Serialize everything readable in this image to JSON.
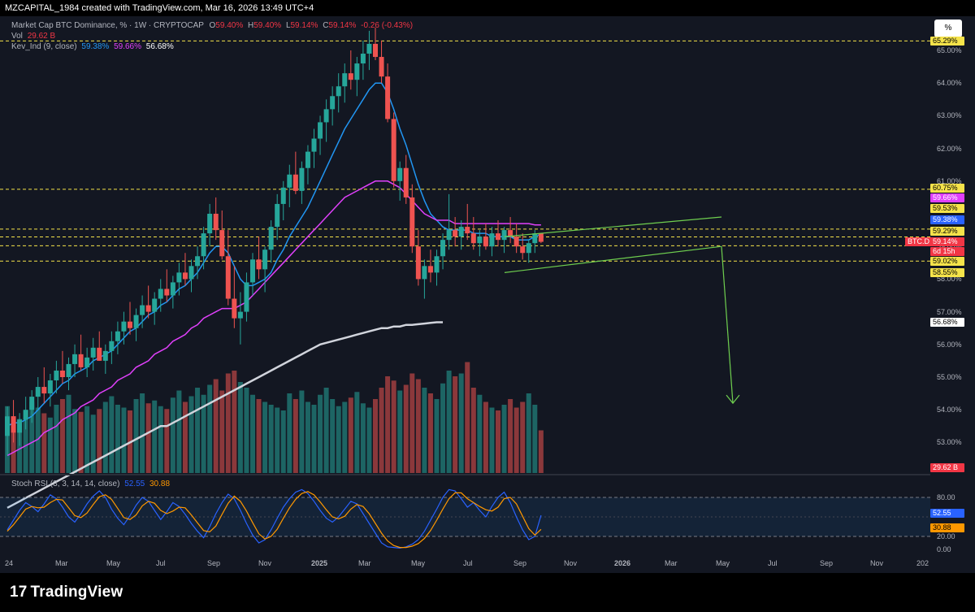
{
  "header": {
    "text": "MZCAPITAL_1984 created with TradingView.com, Mar 16, 2026 13:49 UTC+4"
  },
  "legend": {
    "main": {
      "label": "Market Cap BTC Dominance, % · 1W · CRYPTOCAP",
      "o_label": "O",
      "o": "59.40%",
      "h_label": "H",
      "h": "59.40%",
      "l_label": "L",
      "l": "59.14%",
      "c_label": "C",
      "c": "59.14%",
      "chg": "-0.26 (-0.43%)"
    },
    "vol": {
      "label": "Vol",
      "value": "29.62 B"
    },
    "kev": {
      "label": "Kev_Ind (9, close)",
      "v1": "59.38%",
      "v2": "59.66%",
      "v3": "56.68%"
    }
  },
  "stoch": {
    "label": "Stoch RSI (3, 3, 14, 14, close)",
    "k": "52.55",
    "d": "30.88"
  },
  "scale_button": "%",
  "price_ticks": [
    "65.00%",
    "64.00%",
    "63.00%",
    "62.00%",
    "61.00%",
    "59.00%",
    "58.00%",
    "57.00%",
    "56.00%",
    "55.00%",
    "54.00%",
    "53.00%"
  ],
  "stoch_ticks": [
    "80.00",
    "20.00",
    "0.00"
  ],
  "tags": [
    {
      "text": "65.29%",
      "bg": "#f5e34a",
      "fg": "#000",
      "y": 51
    },
    {
      "text": "60.75%",
      "bg": "#f5e34a",
      "fg": "#000",
      "y": 232
    },
    {
      "text": "59.66%",
      "bg": "#e040fb",
      "fg": "#fff",
      "y": 244
    },
    {
      "text": "59.53%",
      "bg": "#f5e34a",
      "fg": "#000",
      "y": 257
    },
    {
      "text": "59.38%",
      "bg": "#2962ff",
      "fg": "#fff",
      "y": 271
    },
    {
      "text": "59.29%",
      "bg": "#f5e34a",
      "fg": "#000",
      "y": 285
    },
    {
      "text": "59.14%",
      "bg": "#f23645",
      "fg": "#fff",
      "y": 298
    },
    {
      "text": "6d 15h",
      "bg": "#f23645",
      "fg": "#fff",
      "y": 310
    },
    {
      "text": "59.02%",
      "bg": "#f5e34a",
      "fg": "#000",
      "y": 322
    },
    {
      "text": "58.55%",
      "bg": "#f5e34a",
      "fg": "#000",
      "y": 336
    },
    {
      "text": "56.68%",
      "bg": "#ffffff",
      "fg": "#000",
      "y": 397
    },
    {
      "text": "29.62 B",
      "bg": "#f23645",
      "fg": "#fff",
      "y": 576
    },
    {
      "text": "52.55",
      "bg": "#2962ff",
      "fg": "#fff",
      "y": 632
    },
    {
      "text": "30.88",
      "bg": "#ff9800",
      "fg": "#000",
      "y": 650
    }
  ],
  "symbol_tag": "BTC.D",
  "x_ticks": [
    "24",
    "Mar",
    "May",
    "Jul",
    "Sep",
    "Nov",
    "2025",
    "Mar",
    "May",
    "Jul",
    "Sep",
    "Nov",
    "2026",
    "Mar",
    "May",
    "Jul",
    "Sep",
    "Nov",
    "202"
  ],
  "footer": {
    "brand": "TradingView",
    "mark": "17"
  },
  "chart_data": {
    "type": "candlestick",
    "interval": "1W",
    "symbol": "BTC.D",
    "x_range": [
      "2024-01",
      "2027-01"
    ],
    "y_range_pct": [
      52.5,
      65.8
    ],
    "horizontal_levels_pct": [
      65.29,
      60.75,
      59.53,
      59.29,
      59.02,
      58.55
    ],
    "ohlc": [
      [
        53.2,
        54.1,
        52.6,
        53.8
      ],
      [
        53.8,
        54.3,
        53.0,
        53.3
      ],
      [
        53.3,
        53.9,
        52.9,
        53.7
      ],
      [
        53.7,
        54.4,
        53.4,
        54.0
      ],
      [
        54.0,
        54.6,
        53.6,
        54.4
      ],
      [
        54.4,
        55.0,
        54.0,
        54.7
      ],
      [
        54.7,
        55.3,
        54.2,
        54.5
      ],
      [
        54.5,
        55.1,
        54.1,
        54.9
      ],
      [
        54.9,
        55.5,
        54.5,
        55.2
      ],
      [
        55.2,
        55.8,
        54.8,
        55.0
      ],
      [
        55.0,
        55.6,
        54.6,
        55.4
      ],
      [
        55.4,
        56.0,
        55.0,
        55.7
      ],
      [
        55.7,
        56.3,
        55.2,
        55.3
      ],
      [
        55.3,
        55.9,
        55.0,
        55.6
      ],
      [
        55.6,
        56.2,
        55.2,
        55.9
      ],
      [
        55.9,
        56.4,
        55.5,
        55.5
      ],
      [
        55.5,
        56.0,
        55.1,
        55.8
      ],
      [
        55.8,
        56.4,
        55.4,
        56.1
      ],
      [
        56.1,
        56.7,
        55.7,
        56.4
      ],
      [
        56.4,
        57.0,
        56.0,
        56.7
      ],
      [
        56.7,
        57.3,
        56.3,
        56.5
      ],
      [
        56.5,
        57.1,
        56.1,
        56.9
      ],
      [
        56.9,
        57.5,
        56.5,
        57.2
      ],
      [
        57.2,
        57.8,
        56.8,
        57.0
      ],
      [
        57.0,
        57.6,
        56.6,
        57.4
      ],
      [
        57.4,
        58.0,
        57.0,
        57.7
      ],
      [
        57.7,
        58.3,
        57.3,
        57.5
      ],
      [
        57.5,
        58.1,
        57.1,
        57.9
      ],
      [
        57.9,
        58.5,
        57.5,
        58.2
      ],
      [
        58.2,
        58.8,
        57.8,
        58.0
      ],
      [
        58.0,
        58.6,
        57.6,
        58.4
      ],
      [
        58.4,
        59.0,
        58.0,
        58.7
      ],
      [
        58.7,
        59.6,
        58.3,
        59.4
      ],
      [
        59.4,
        60.3,
        59.0,
        60.0
      ],
      [
        60.0,
        60.5,
        59.2,
        59.5
      ],
      [
        59.5,
        60.1,
        58.6,
        58.7
      ],
      [
        58.7,
        59.5,
        57.2,
        57.4
      ],
      [
        57.4,
        58.4,
        56.5,
        56.8
      ],
      [
        56.8,
        57.6,
        56.0,
        57.0
      ],
      [
        57.0,
        58.2,
        56.7,
        57.9
      ],
      [
        57.9,
        58.8,
        57.5,
        58.6
      ],
      [
        58.6,
        59.3,
        58.0,
        58.3
      ],
      [
        58.3,
        59.0,
        57.6,
        58.9
      ],
      [
        58.9,
        59.8,
        58.5,
        59.6
      ],
      [
        59.6,
        60.6,
        59.2,
        60.3
      ],
      [
        60.3,
        61.0,
        59.8,
        60.8
      ],
      [
        60.8,
        61.5,
        60.2,
        61.2
      ],
      [
        61.2,
        61.9,
        60.6,
        60.7
      ],
      [
        60.7,
        61.6,
        60.3,
        61.4
      ],
      [
        61.4,
        62.1,
        60.9,
        61.9
      ],
      [
        61.9,
        62.6,
        61.4,
        62.3
      ],
      [
        62.3,
        63.0,
        61.8,
        62.8
      ],
      [
        62.8,
        63.5,
        62.2,
        63.2
      ],
      [
        63.2,
        63.9,
        62.7,
        63.6
      ],
      [
        63.6,
        64.3,
        63.1,
        63.9
      ],
      [
        63.9,
        64.6,
        63.4,
        64.3
      ],
      [
        64.3,
        65.0,
        63.8,
        64.1
      ],
      [
        64.1,
        64.8,
        63.6,
        64.6
      ],
      [
        64.6,
        65.3,
        64.1,
        64.9
      ],
      [
        64.9,
        65.6,
        64.4,
        65.2
      ],
      [
        65.2,
        65.7,
        64.7,
        64.8
      ],
      [
        64.8,
        65.3,
        64.0,
        64.2
      ],
      [
        64.2,
        64.6,
        62.8,
        62.9
      ],
      [
        62.9,
        63.1,
        60.8,
        61.0
      ],
      [
        61.0,
        61.6,
        60.4,
        61.4
      ],
      [
        61.4,
        61.8,
        60.3,
        60.5
      ],
      [
        60.5,
        60.9,
        58.8,
        59.0
      ],
      [
        59.0,
        59.5,
        57.8,
        58.0
      ],
      [
        58.0,
        58.6,
        57.4,
        58.4
      ],
      [
        58.4,
        58.9,
        57.9,
        58.2
      ],
      [
        58.2,
        58.9,
        57.8,
        58.7
      ],
      [
        58.7,
        59.4,
        58.3,
        59.2
      ],
      [
        59.2,
        60.6,
        58.9,
        59.5
      ],
      [
        59.5,
        59.9,
        59.0,
        59.3
      ],
      [
        59.3,
        59.8,
        58.9,
        59.6
      ],
      [
        59.6,
        60.3,
        59.2,
        59.4
      ],
      [
        59.4,
        59.9,
        58.9,
        59.1
      ],
      [
        59.1,
        59.5,
        58.7,
        59.3
      ],
      [
        59.3,
        59.7,
        58.9,
        59.0
      ],
      [
        59.0,
        59.6,
        58.7,
        59.4
      ],
      [
        59.4,
        59.8,
        59.0,
        59.2
      ],
      [
        59.2,
        59.6,
        58.8,
        59.5
      ],
      [
        59.5,
        59.9,
        59.1,
        59.3
      ],
      [
        59.3,
        59.7,
        58.8,
        59.0
      ],
      [
        59.0,
        59.4,
        58.6,
        58.8
      ],
      [
        58.8,
        59.2,
        58.5,
        59.1
      ],
      [
        59.1,
        59.5,
        58.8,
        59.4
      ],
      [
        59.4,
        59.4,
        59.1,
        59.14
      ]
    ],
    "volume_b": [
      47,
      40,
      38,
      44,
      50,
      46,
      42,
      39,
      48,
      52,
      55,
      45,
      43,
      47,
      41,
      45,
      50,
      54,
      48,
      46,
      44,
      52,
      56,
      49,
      51,
      47,
      45,
      53,
      58,
      50,
      54,
      60,
      55,
      62,
      66,
      58,
      70,
      72,
      64,
      60,
      55,
      52,
      50,
      48,
      46,
      44,
      56,
      52,
      58,
      50,
      48,
      55,
      60,
      52,
      47,
      50,
      53,
      57,
      49,
      46,
      52,
      60,
      68,
      65,
      58,
      62,
      70,
      66,
      60,
      56,
      52,
      63,
      72,
      68,
      70,
      78,
      60,
      55,
      50,
      46,
      44,
      48,
      52,
      46,
      50,
      56,
      48,
      30
    ],
    "series": [
      {
        "name": "Kev_Ind (9, close)",
        "values": [
          53.5,
          53.6,
          53.6,
          53.7,
          53.8,
          54.0,
          54.2,
          54.4,
          54.6,
          54.8,
          54.9,
          55.1,
          55.2,
          55.3,
          55.5,
          55.6,
          55.7,
          55.8,
          56.0,
          56.2,
          56.4,
          56.5,
          56.7,
          56.9,
          57.0,
          57.2,
          57.3,
          57.5,
          57.7,
          57.8,
          58.0,
          58.2,
          58.5,
          58.8,
          59.0,
          59.0,
          58.8,
          58.4,
          58.0,
          57.8,
          57.8,
          57.9,
          58.0,
          58.2,
          58.6,
          58.9,
          59.3,
          59.6,
          59.9,
          60.2,
          60.6,
          61.0,
          61.4,
          61.8,
          62.2,
          62.6,
          62.9,
          63.2,
          63.5,
          63.8,
          64.0,
          64.0,
          63.7,
          63.2,
          62.6,
          62.1,
          61.5,
          60.9,
          60.4,
          60.0,
          59.8,
          59.6,
          59.5,
          59.5,
          59.5,
          59.5,
          59.4,
          59.4,
          59.4,
          59.3,
          59.3,
          59.3,
          59.3,
          59.2,
          59.2,
          59.2,
          59.3,
          59.38
        ]
      },
      {
        "name": "",
        "values": [
          52.6,
          52.7,
          52.8,
          52.9,
          53.0,
          53.1,
          53.3,
          53.4,
          53.5,
          53.7,
          53.8,
          53.9,
          54.1,
          54.2,
          54.3,
          54.5,
          54.6,
          54.7,
          54.9,
          55.0,
          55.1,
          55.3,
          55.4,
          55.5,
          55.7,
          55.8,
          55.9,
          56.1,
          56.2,
          56.3,
          56.5,
          56.6,
          56.8,
          56.9,
          57.0,
          57.1,
          57.1,
          57.1,
          57.2,
          57.3,
          57.5,
          57.7,
          57.9,
          58.1,
          58.3,
          58.5,
          58.7,
          58.9,
          59.1,
          59.3,
          59.5,
          59.7,
          59.9,
          60.1,
          60.3,
          60.5,
          60.6,
          60.7,
          60.8,
          60.9,
          61.0,
          61.0,
          61.0,
          60.9,
          60.8,
          60.6,
          60.4,
          60.2,
          60.0,
          59.9,
          59.8,
          59.8,
          59.8,
          59.7,
          59.7,
          59.7,
          59.7,
          59.7,
          59.7,
          59.7,
          59.7,
          59.7,
          59.7,
          59.7,
          59.7,
          59.7,
          59.66,
          59.66
        ]
      },
      {
        "name": "",
        "values": [
          51.0,
          51.1,
          51.2,
          51.3,
          51.4,
          51.5,
          51.6,
          51.7,
          51.8,
          51.9,
          52.0,
          52.1,
          52.2,
          52.3,
          52.4,
          52.5,
          52.6,
          52.7,
          52.8,
          52.9,
          53.0,
          53.1,
          53.2,
          53.3,
          53.4,
          53.5,
          53.5,
          53.6,
          53.7,
          53.8,
          53.9,
          54.0,
          54.1,
          54.2,
          54.3,
          54.4,
          54.5,
          54.6,
          54.7,
          54.8,
          54.9,
          55.0,
          55.1,
          55.2,
          55.3,
          55.4,
          55.5,
          55.6,
          55.7,
          55.8,
          55.9,
          56.0,
          56.05,
          56.1,
          56.15,
          56.2,
          56.25,
          56.3,
          56.35,
          56.4,
          56.45,
          56.5,
          56.5,
          56.55,
          56.55,
          56.6,
          56.6,
          56.62,
          56.64,
          56.66,
          56.68,
          56.68
        ]
      }
    ],
    "stoch_rsi": {
      "k": [
        30,
        45,
        60,
        72,
        66,
        58,
        70,
        84,
        78,
        65,
        50,
        42,
        55,
        70,
        82,
        90,
        80,
        62,
        48,
        38,
        52,
        68,
        80,
        74,
        60,
        46,
        58,
        72,
        66,
        54,
        40,
        28,
        18,
        35,
        55,
        72,
        85,
        78,
        60,
        40,
        22,
        10,
        15,
        30,
        48,
        65,
        78,
        88,
        92,
        86,
        74,
        60,
        48,
        42,
        50,
        62,
        74,
        70,
        55,
        40,
        25,
        10,
        4,
        3,
        2,
        4,
        8,
        15,
        28,
        45,
        62,
        80,
        92,
        90,
        78,
        65,
        72,
        60,
        50,
        66,
        80,
        88,
        72,
        50,
        30,
        15,
        20,
        52.55
      ],
      "d": [
        28,
        38,
        50,
        62,
        66,
        64,
        65,
        72,
        77,
        76,
        64,
        52,
        49,
        56,
        69,
        81,
        84,
        77,
        63,
        49,
        46,
        53,
        67,
        74,
        71,
        60,
        55,
        59,
        65,
        64,
        53,
        41,
        29,
        27,
        36,
        54,
        71,
        82,
        74,
        59,
        41,
        24,
        16,
        20,
        31,
        48,
        64,
        77,
        86,
        89,
        84,
        73,
        61,
        50,
        47,
        51,
        62,
        69,
        66,
        55,
        40,
        25,
        13,
        6,
        3,
        3,
        5,
        9,
        17,
        29,
        45,
        62,
        78,
        87,
        87,
        78,
        72,
        66,
        61,
        59,
        65,
        78,
        80,
        70,
        51,
        32,
        22,
        30.88
      ],
      "levels": [
        80,
        20
      ]
    },
    "annotations": {
      "channel_upper": [
        [
          59.3,
          "2025-08"
        ],
        [
          59.9,
          "2026-04"
        ]
      ],
      "channel_lower": [
        [
          58.2,
          "2025-08"
        ],
        [
          59.0,
          "2026-04"
        ]
      ],
      "projection_target_pct": 54.2
    }
  }
}
